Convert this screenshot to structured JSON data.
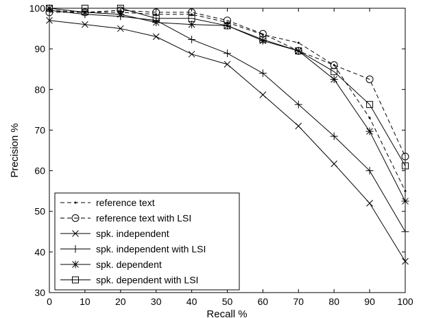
{
  "chart_data": {
    "type": "line",
    "xlabel": "Recall %",
    "ylabel": "Precision %",
    "xlim": [
      0,
      100
    ],
    "ylim": [
      30,
      100
    ],
    "x": [
      0,
      10,
      20,
      30,
      40,
      50,
      60,
      70,
      80,
      90,
      100
    ],
    "x_ticks": [
      0,
      10,
      20,
      30,
      40,
      50,
      60,
      70,
      80,
      90,
      100
    ],
    "y_ticks": [
      30,
      40,
      50,
      60,
      70,
      80,
      90,
      100
    ],
    "legend_position": "bottom-left",
    "grid": false,
    "series": [
      {
        "name": "reference text",
        "line": "dashed",
        "marker": "dot",
        "values": [
          99.5,
          99,
          99,
          98.5,
          98.5,
          96.5,
          93.5,
          91.5,
          86,
          73,
          55
        ]
      },
      {
        "name": "reference text with LSI",
        "line": "dashed",
        "marker": "circle",
        "values": [
          99,
          99,
          99.5,
          99,
          99,
          97,
          93.7,
          89.5,
          86,
          82.5,
          63.5
        ]
      },
      {
        "name": "spk. independent",
        "line": "solid",
        "marker": "x",
        "values": [
          97,
          96,
          95,
          93,
          88.7,
          86.2,
          78.7,
          71,
          61.7,
          52,
          37.7
        ]
      },
      {
        "name": "spk. independent with LSI",
        "line": "solid",
        "marker": "plus",
        "values": [
          99.5,
          98.5,
          98,
          97,
          92.3,
          88.9,
          84,
          76.3,
          68.5,
          60,
          45
        ]
      },
      {
        "name": "spk. dependent",
        "line": "solid",
        "marker": "star",
        "values": [
          100,
          99,
          98.5,
          96.5,
          96,
          95.7,
          92,
          89.5,
          82.5,
          69.7,
          52.5
        ]
      },
      {
        "name": "spk. dependent with LSI",
        "line": "solid",
        "marker": "square",
        "values": [
          100,
          100,
          100,
          97.5,
          97.5,
          95.7,
          92.3,
          89.5,
          84.4,
          76.3,
          61.2
        ]
      }
    ]
  }
}
